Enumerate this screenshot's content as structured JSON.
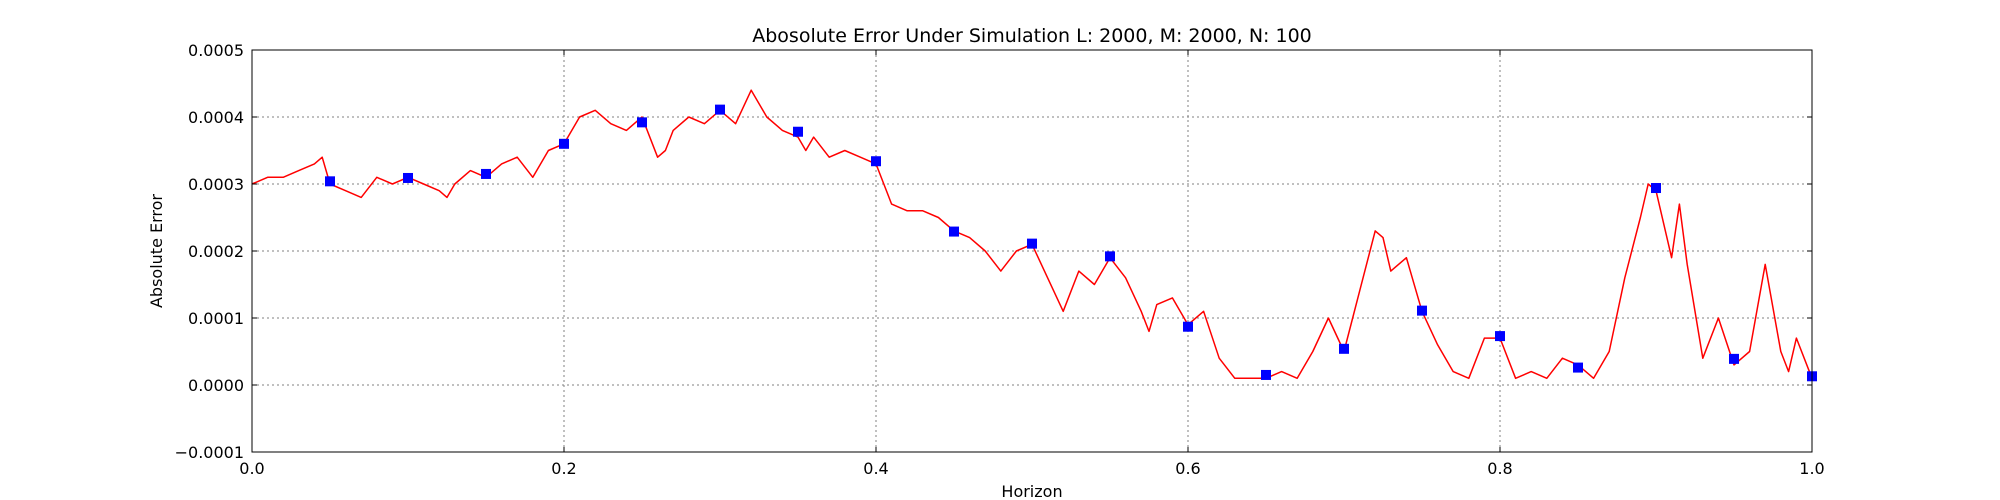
{
  "chart_data": {
    "type": "line",
    "title": "Abosolute Error Under Simulation L: 2000, M: 2000, N: 100",
    "xlabel": "Horizon",
    "ylabel": "Absolute Error",
    "xlim": [
      0.0,
      1.0
    ],
    "ylim": [
      -0.0001,
      0.0005
    ],
    "xticks": [
      0.0,
      0.2,
      0.4,
      0.6,
      0.8,
      1.0
    ],
    "xtick_labels": [
      "0.0",
      "0.2",
      "0.4",
      "0.6",
      "0.8",
      "1.0"
    ],
    "yticks": [
      -0.0001,
      0.0,
      0.0001,
      0.0002,
      0.0003,
      0.0004,
      0.0005
    ],
    "ytick_labels": [
      "−0.0001",
      "0.0000",
      "0.0001",
      "0.0002",
      "0.0003",
      "0.0004",
      "0.0005"
    ],
    "grid": true,
    "grid_style": "dotted",
    "colors": {
      "line": "#ff0000",
      "markers": "#0000ff",
      "grid": "#808080",
      "axes": "#000000"
    },
    "series": [
      {
        "style": "line",
        "x": [
          0.0,
          0.01,
          0.02,
          0.03,
          0.04,
          0.045,
          0.05,
          0.06,
          0.07,
          0.08,
          0.09,
          0.1,
          0.11,
          0.12,
          0.125,
          0.13,
          0.14,
          0.15,
          0.16,
          0.17,
          0.18,
          0.19,
          0.2,
          0.21,
          0.22,
          0.23,
          0.24,
          0.25,
          0.26,
          0.265,
          0.27,
          0.28,
          0.29,
          0.3,
          0.31,
          0.32,
          0.325,
          0.33,
          0.34,
          0.35,
          0.355,
          0.36,
          0.37,
          0.38,
          0.39,
          0.4,
          0.405,
          0.41,
          0.42,
          0.43,
          0.44,
          0.45,
          0.46,
          0.47,
          0.48,
          0.49,
          0.5,
          0.51,
          0.52,
          0.53,
          0.54,
          0.55,
          0.56,
          0.57,
          0.575,
          0.58,
          0.59,
          0.6,
          0.61,
          0.62,
          0.63,
          0.64,
          0.65,
          0.66,
          0.67,
          0.68,
          0.69,
          0.7,
          0.71,
          0.72,
          0.725,
          0.73,
          0.74,
          0.75,
          0.76,
          0.77,
          0.78,
          0.79,
          0.8,
          0.81,
          0.82,
          0.83,
          0.84,
          0.85,
          0.86,
          0.87,
          0.88,
          0.89,
          0.895,
          0.9,
          0.91,
          0.915,
          0.92,
          0.93,
          0.94,
          0.95,
          0.96,
          0.97,
          0.98,
          0.985,
          0.99,
          1.0
        ],
        "y": [
          0.0003,
          0.00031,
          0.00031,
          0.00032,
          0.00033,
          0.00034,
          0.0003,
          0.00029,
          0.00028,
          0.00031,
          0.0003,
          0.00031,
          0.0003,
          0.00029,
          0.00028,
          0.0003,
          0.00032,
          0.00031,
          0.00033,
          0.00034,
          0.00031,
          0.00035,
          0.00036,
          0.0004,
          0.00041,
          0.00039,
          0.00038,
          0.0004,
          0.00034,
          0.00035,
          0.00038,
          0.0004,
          0.00039,
          0.00041,
          0.00039,
          0.00044,
          0.00042,
          0.0004,
          0.00038,
          0.00037,
          0.00035,
          0.00037,
          0.00034,
          0.00035,
          0.00034,
          0.00033,
          0.0003,
          0.00027,
          0.00026,
          0.00026,
          0.00025,
          0.00023,
          0.00022,
          0.0002,
          0.00017,
          0.0002,
          0.00021,
          0.00016,
          0.00011,
          0.00017,
          0.00015,
          0.00019,
          0.00016,
          0.00011,
          8e-05,
          0.00012,
          0.00013,
          9e-05,
          0.00011,
          4e-05,
          1e-05,
          1e-05,
          1e-05,
          2e-05,
          1e-05,
          5e-05,
          0.0001,
          5e-05,
          0.00014,
          0.00023,
          0.00022,
          0.00017,
          0.00019,
          0.00011,
          6e-05,
          2e-05,
          1e-05,
          7e-05,
          7e-05,
          1e-05,
          2e-05,
          1e-05,
          4e-05,
          3e-05,
          1e-05,
          5e-05,
          0.00016,
          0.00025,
          0.0003,
          0.00029,
          0.00019,
          0.00027,
          0.00018,
          4e-05,
          0.0001,
          3e-05,
          5e-05,
          0.00018,
          5e-05,
          2e-05,
          7e-05,
          1e-05
        ]
      },
      {
        "style": "markers",
        "x": [
          0.05,
          0.1,
          0.15,
          0.2,
          0.25,
          0.3,
          0.35,
          0.4,
          0.45,
          0.5,
          0.55,
          0.6,
          0.65,
          0.7,
          0.75,
          0.8,
          0.85,
          0.9,
          0.95,
          1.0
        ],
        "y": [
          0.000304,
          0.000309,
          0.000315,
          0.00036,
          0.000392,
          0.000411,
          0.000378,
          0.000334,
          0.000229,
          0.000211,
          0.000192,
          8.7e-05,
          1.5e-05,
          5.4e-05,
          0.000111,
          7.3e-05,
          2.6e-05,
          0.000294,
          3.9e-05,
          1.3e-05
        ]
      }
    ]
  }
}
